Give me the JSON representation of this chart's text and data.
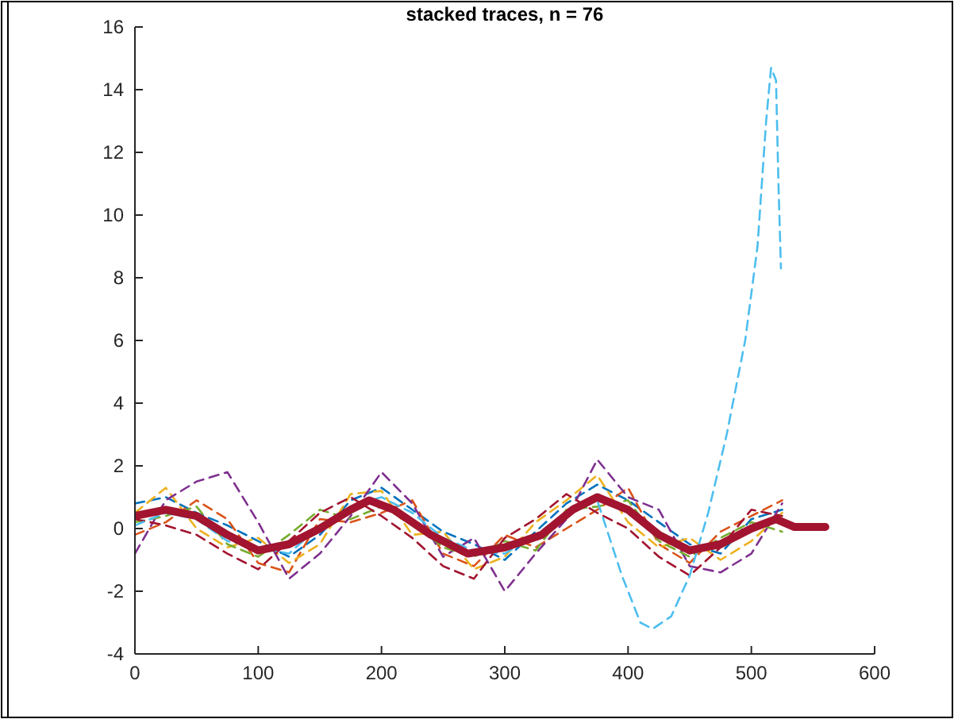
{
  "chart_data": {
    "type": "line",
    "title": "stacked traces, n = 76",
    "x": [
      0,
      25,
      50,
      75,
      100,
      125,
      150,
      175,
      200,
      225,
      250,
      275,
      300,
      325,
      350,
      375,
      400,
      425,
      450,
      475,
      500,
      525
    ],
    "xlim": [
      0,
      600
    ],
    "xticks": [
      0,
      100,
      200,
      300,
      400,
      500,
      600
    ],
    "ylim": [
      -4,
      16
    ],
    "yticks": [
      -4,
      -2,
      0,
      2,
      4,
      6,
      8,
      10,
      12,
      14,
      16
    ],
    "marker": "none",
    "line_style": "dashed",
    "series": [
      {
        "color": "#0072bd",
        "values": [
          0.8,
          1.0,
          0.5,
          0.1,
          -0.4,
          -0.9,
          -0.2,
          0.9,
          1.3,
          0.6,
          -0.1,
          -0.5,
          -1.0,
          -0.1,
          0.8,
          1.4,
          0.9,
          0.2,
          -0.5,
          -0.8,
          0.3,
          0.6
        ]
      },
      {
        "color": "#d95319",
        "values": [
          -0.2,
          0.2,
          0.9,
          0.3,
          -1.1,
          -1.4,
          0.3,
          0.2,
          0.5,
          0.9,
          -0.8,
          -1.2,
          -0.2,
          -0.6,
          0.0,
          0.6,
          1.3,
          -0.5,
          -1.1,
          -0.1,
          0.4,
          0.9
        ]
      },
      {
        "color": "#edb120",
        "values": [
          0.5,
          1.3,
          0.0,
          -0.6,
          -0.3,
          -1.1,
          -0.5,
          1.1,
          1.2,
          -0.2,
          -0.1,
          -1.3,
          -0.9,
          0.2,
          0.9,
          1.7,
          0.2,
          -0.6,
          -0.3,
          -1.0,
          -0.4,
          0.5
        ]
      },
      {
        "color": "#7e2f8e",
        "values": [
          -0.8,
          0.9,
          1.5,
          1.8,
          0.2,
          -1.6,
          -0.8,
          0.4,
          1.8,
          0.8,
          -0.9,
          -0.3,
          -2.0,
          -0.8,
          0.3,
          2.2,
          1.0,
          0.6,
          -1.2,
          -1.4,
          -0.8,
          0.8
        ]
      },
      {
        "color": "#77ac30",
        "values": [
          0.2,
          0.4,
          0.7,
          -0.5,
          -0.9,
          -0.2,
          0.6,
          0.3,
          0.7,
          0.2,
          -0.6,
          -0.9,
          -0.4,
          -0.7,
          0.6,
          0.7,
          0.9,
          -0.4,
          -0.9,
          -0.3,
          0.2,
          -0.1
        ]
      },
      {
        "color": "#a2142f",
        "values": [
          0.3,
          0.1,
          -0.2,
          -0.8,
          -1.3,
          -0.4,
          0.5,
          1.0,
          0.4,
          -0.3,
          -1.2,
          -1.6,
          -0.3,
          0.3,
          1.1,
          0.5,
          0.0,
          -0.9,
          -1.5,
          -0.6,
          0.6,
          0.4
        ]
      },
      {
        "color": "#4dbeee",
        "x": [
          0,
          25,
          50,
          75,
          100,
          125,
          150,
          175,
          200,
          225,
          250,
          275,
          300,
          325,
          350,
          375,
          395,
          410,
          420,
          435,
          450,
          465,
          480,
          495,
          505,
          512,
          516,
          520,
          522,
          524
        ],
        "values": [
          0.1,
          0.5,
          0.3,
          -0.4,
          -0.6,
          -0.8,
          0.1,
          0.7,
          1.0,
          0.5,
          -0.3,
          -0.7,
          -0.8,
          -0.2,
          0.5,
          0.9,
          -1.5,
          -3.0,
          -3.2,
          -2.8,
          -1.5,
          0.5,
          3.0,
          6.0,
          9.0,
          13.0,
          14.7,
          14.3,
          11.0,
          8.3
        ]
      },
      {
        "color": "#a2142f",
        "line_style": "solid",
        "x": [
          0,
          25,
          50,
          75,
          100,
          125,
          150,
          175,
          190,
          210,
          240,
          270,
          300,
          330,
          355,
          375,
          400,
          425,
          450,
          475,
          500,
          520,
          535,
          560
        ],
        "values": [
          0.4,
          0.6,
          0.4,
          -0.2,
          -0.7,
          -0.5,
          0.0,
          0.6,
          0.9,
          0.6,
          -0.2,
          -0.8,
          -0.6,
          -0.2,
          0.6,
          1.0,
          0.6,
          -0.2,
          -0.7,
          -0.5,
          0.0,
          0.3,
          0.05,
          0.05
        ]
      }
    ]
  }
}
